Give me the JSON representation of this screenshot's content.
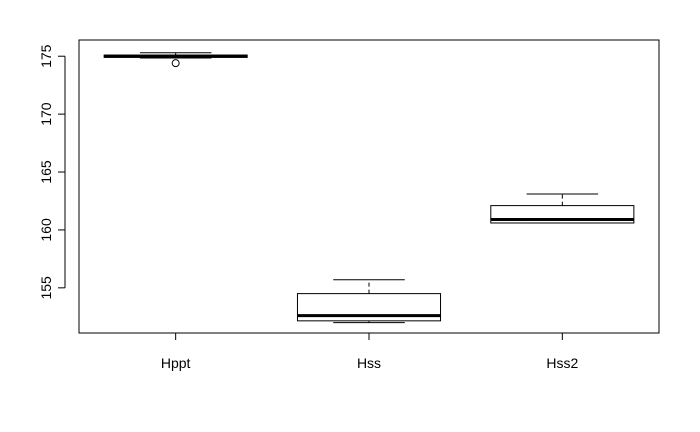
{
  "chart_data": {
    "type": "boxplot",
    "title": "",
    "xlabel": "",
    "ylabel": "",
    "categories": [
      "Hppt",
      "Hss",
      "Hss2"
    ],
    "boxes": [
      {
        "category": "Hppt",
        "whisker_low": 174.85,
        "q1": 174.9,
        "median": 175.0,
        "q3": 175.1,
        "whisker_high": 175.3,
        "outliers": [
          174.4
        ]
      },
      {
        "category": "Hss",
        "whisker_low": 152.0,
        "q1": 152.15,
        "median": 152.6,
        "q3": 154.5,
        "whisker_high": 155.7,
        "outliers": []
      },
      {
        "category": "Hss2",
        "whisker_low": 160.6,
        "q1": 160.6,
        "median": 160.9,
        "q3": 162.1,
        "whisker_high": 163.1,
        "outliers": []
      }
    ],
    "y_ticks": [
      155,
      160,
      165,
      170,
      175
    ],
    "y_tick_labels": [
      "155",
      "160",
      "165",
      "170",
      "175"
    ],
    "ylim": [
      151.1,
      176.4
    ],
    "grid": false,
    "legend": "none"
  }
}
